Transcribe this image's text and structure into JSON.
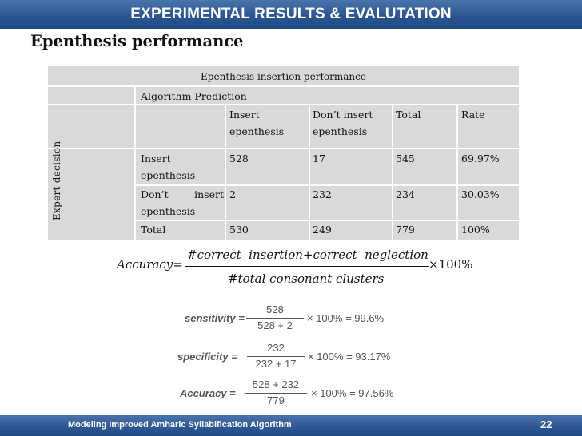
{
  "header": {
    "title": "EXPERIMENTAL RESULTS & EVALUTATION"
  },
  "subtitle": "Epenthesis performance",
  "table": {
    "caption": "Epenthesis insertion performance",
    "algorithm_prediction": "Algorithm Prediction",
    "expert_decision": "Expert decision",
    "columns": {
      "insert_l1": "Insert",
      "insert_l2": "epenthesis",
      "dont_l1": "Don’t insert",
      "dont_l2": "epenthesis",
      "total": "Total",
      "rate": "Rate"
    },
    "rows": [
      {
        "label_l1": "Insert",
        "label_l2": "epenthesis",
        "insert": "528",
        "dont": "17",
        "total": "545",
        "rate": "69.97%"
      },
      {
        "label_l1": "Don’t   insert",
        "label_l2": "epenthesis",
        "insert": "2",
        "dont": "232",
        "total": "234",
        "rate": "30.03%"
      },
      {
        "label_l1": "Total",
        "label_l2": "",
        "insert": "530",
        "dont": "249",
        "total": "779",
        "rate": "100%"
      }
    ]
  },
  "accuracy_formula": {
    "lhs": "Accuracy=",
    "numerator": "#correct  insertion+correct  neglection",
    "denominator": "#total consonant clusters",
    "suffix": "×100%"
  },
  "metrics": [
    {
      "name": "sensitivity",
      "lhs": "sensitivity =",
      "numerator": "528",
      "denominator": "528 + 2",
      "rhs": "× 100% = 99.6%"
    },
    {
      "name": "specificity",
      "lhs": "specificity =",
      "numerator": "232",
      "denominator": "232 + 17",
      "rhs": "× 100% = 93.17%"
    },
    {
      "name": "accuracy",
      "lhs": "Accuracy =",
      "numerator": "528 + 232",
      "denominator": "779",
      "rhs": "× 100% = 97.56%"
    }
  ],
  "footer": {
    "label": "Modeling Improved Amharic Syllabification Algorithm",
    "page": "22"
  }
}
